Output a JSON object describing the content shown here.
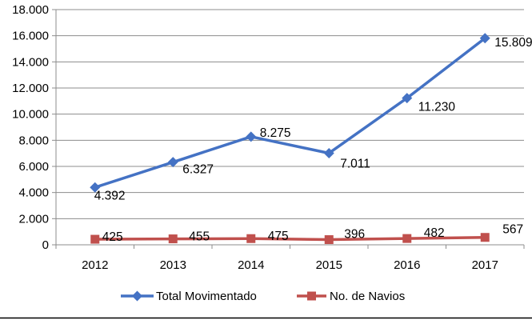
{
  "chart_data": {
    "type": "line",
    "categories": [
      "2012",
      "2013",
      "2014",
      "2015",
      "2016",
      "2017"
    ],
    "series": [
      {
        "name": "Total Movimentado",
        "color": "#4472c4",
        "marker": "diamond",
        "values": [
          4392,
          6327,
          8275,
          7011,
          11230,
          15809
        ],
        "labels": [
          "4.392",
          "6.327",
          "8.275",
          "7.011",
          "11.230",
          "15.809"
        ]
      },
      {
        "name": "No. de Navios",
        "color": "#c0504d",
        "marker": "square",
        "values": [
          425,
          455,
          475,
          396,
          482,
          567
        ],
        "labels": [
          "425",
          "455",
          "475",
          "396",
          "482",
          "567"
        ]
      }
    ],
    "y_ticks": [
      0,
      2000,
      4000,
      6000,
      8000,
      10000,
      12000,
      14000,
      16000,
      18000
    ],
    "y_tick_labels": [
      "0",
      "2.000",
      "4.000",
      "6.000",
      "8.000",
      "10.000",
      "12.000",
      "14.000",
      "16.000",
      "18.000"
    ],
    "ylim": [
      0,
      18000
    ],
    "grid": true,
    "legend": "bottom"
  }
}
